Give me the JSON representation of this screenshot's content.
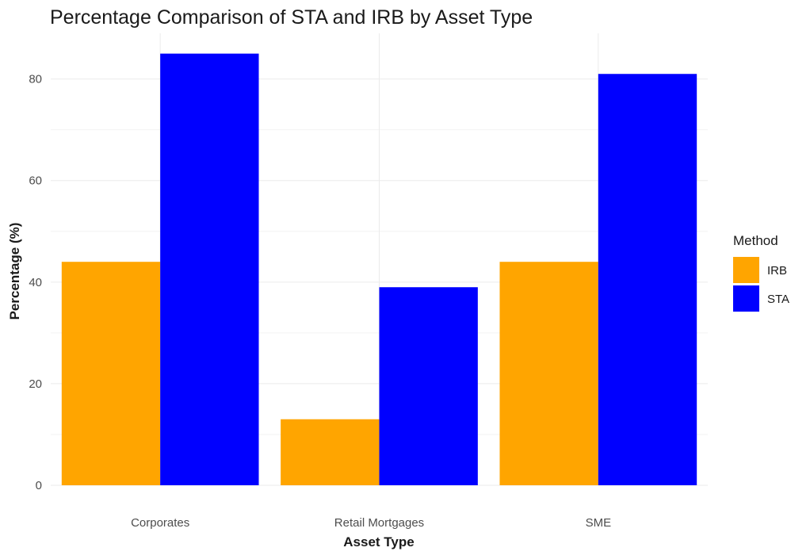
{
  "chart_data": {
    "type": "bar",
    "title": "Percentage Comparison of STA and IRB by Asset Type",
    "xlabel": "Asset Type",
    "ylabel": "Percentage (%)",
    "categories": [
      "Corporates",
      "Retail Mortgages",
      "SME"
    ],
    "series": [
      {
        "name": "IRB",
        "color": "#FFA500",
        "values": [
          44,
          13,
          44
        ]
      },
      {
        "name": "STA",
        "color": "#0000FF",
        "values": [
          85,
          39,
          81
        ]
      }
    ],
    "ylim": [
      0,
      89
    ],
    "yticks": [
      0,
      20,
      40,
      60,
      80
    ],
    "grid": true,
    "legend": {
      "title": "Method",
      "position": "right"
    }
  }
}
